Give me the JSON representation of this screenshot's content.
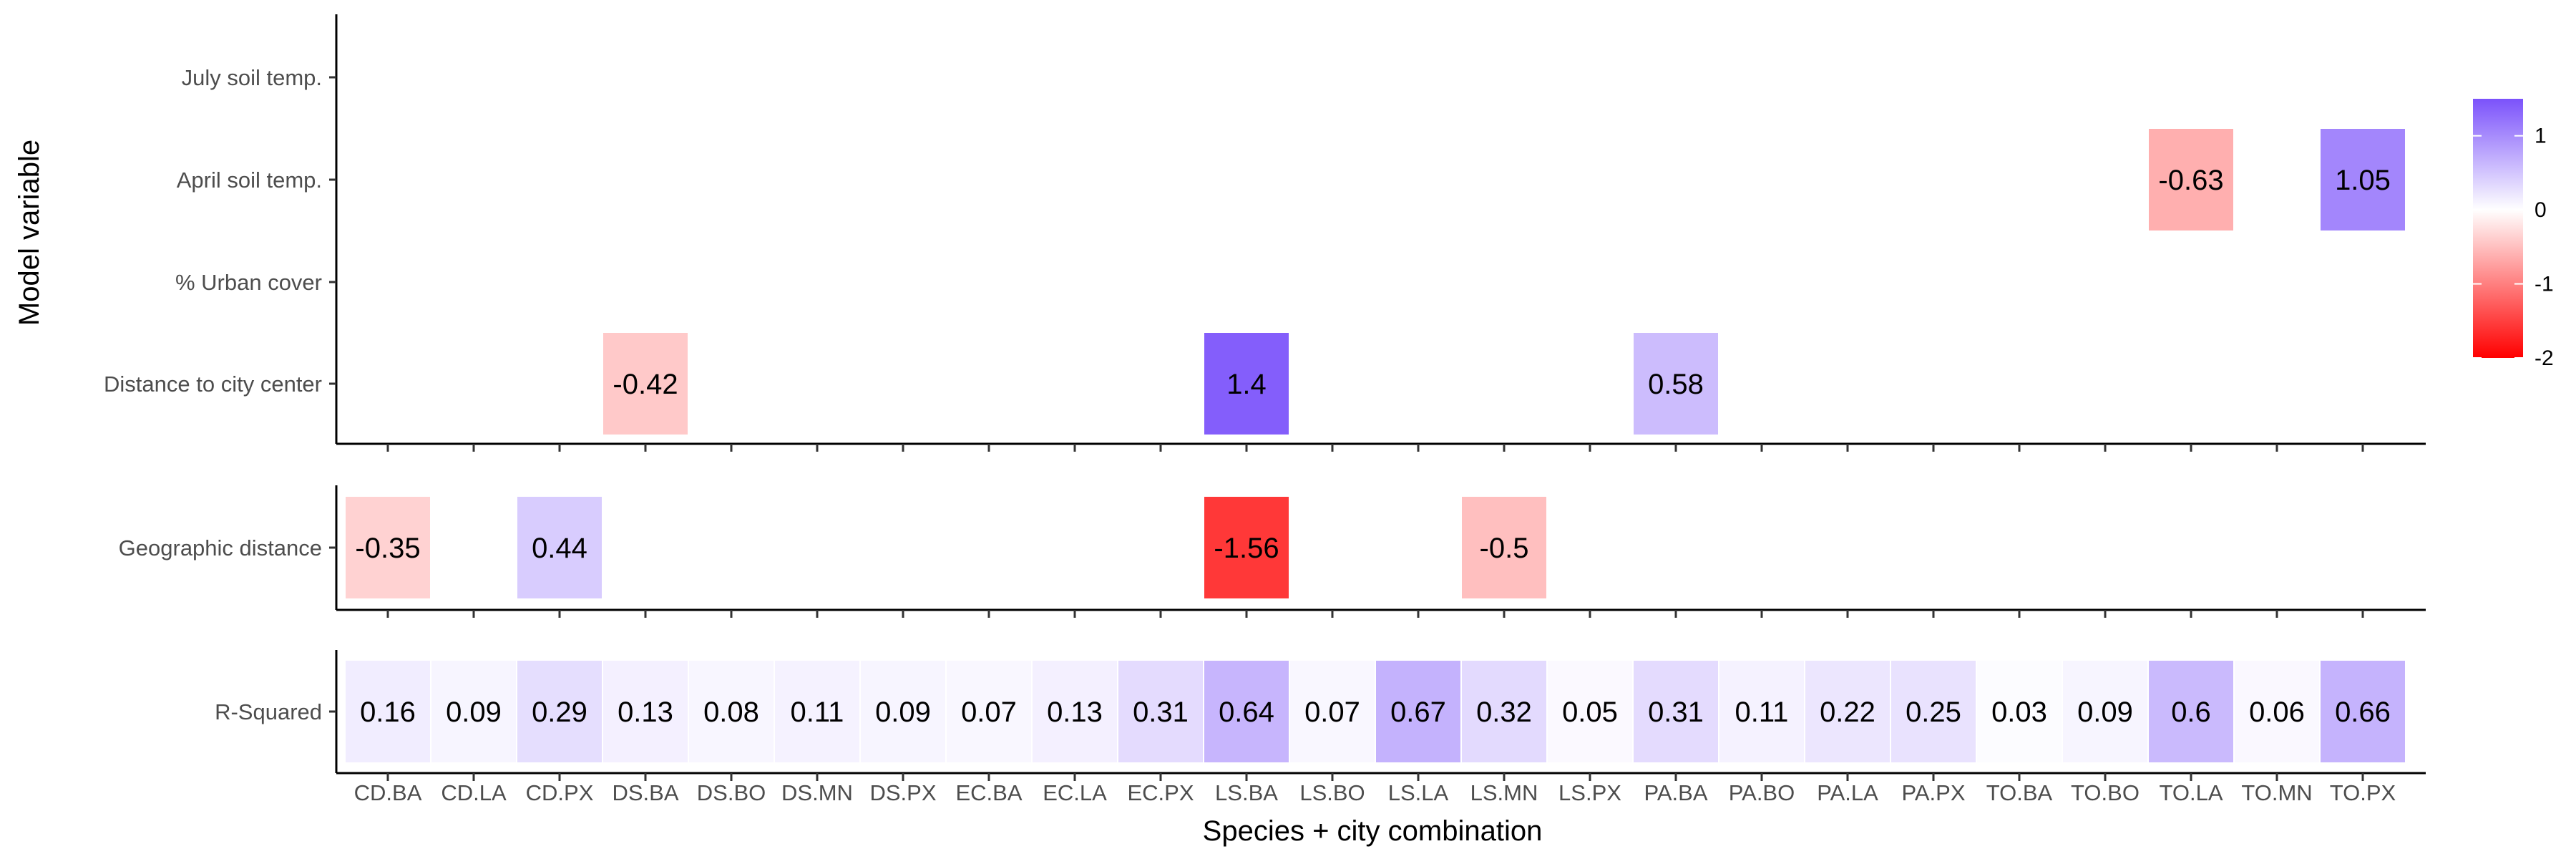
{
  "chart_data": {
    "type": "heatmap",
    "xlabel": "Species + city combination",
    "ylabel": "Model variable",
    "x_categories": [
      "CD.BA",
      "CD.LA",
      "CD.PX",
      "DS.BA",
      "DS.BO",
      "DS.MN",
      "DS.PX",
      "EC.BA",
      "EC.LA",
      "EC.PX",
      "LS.BA",
      "LS.BO",
      "LS.LA",
      "LS.MN",
      "LS.PX",
      "PA.BA",
      "PA.BO",
      "PA.LA",
      "PA.PX",
      "TO.BA",
      "TO.BO",
      "TO.LA",
      "TO.MN",
      "TO.PX"
    ],
    "panels": [
      {
        "rows": [
          "July soil temp.",
          "April soil temp.",
          "% Urban cover",
          "Distance to city center"
        ],
        "cells": [
          {
            "x": "TO.LA",
            "y": "April soil temp.",
            "value": -0.63,
            "label": "-0.63"
          },
          {
            "x": "TO.PX",
            "y": "April soil temp.",
            "value": 1.05,
            "label": "1.05"
          },
          {
            "x": "DS.BA",
            "y": "Distance to city center",
            "value": -0.42,
            "label": "-0.42"
          },
          {
            "x": "LS.BA",
            "y": "Distance to city center",
            "value": 1.4,
            "label": "1.4"
          },
          {
            "x": "PA.BA",
            "y": "Distance to city center",
            "value": 0.58,
            "label": "0.58"
          }
        ]
      },
      {
        "rows": [
          "Geographic distance"
        ],
        "cells": [
          {
            "x": "CD.BA",
            "y": "Geographic distance",
            "value": -0.35,
            "label": "-0.35"
          },
          {
            "x": "CD.PX",
            "y": "Geographic distance",
            "value": 0.44,
            "label": "0.44"
          },
          {
            "x": "LS.BA",
            "y": "Geographic distance",
            "value": -1.56,
            "label": "-1.56"
          },
          {
            "x": "LS.MN",
            "y": "Geographic distance",
            "value": -0.5,
            "label": "-0.5"
          }
        ]
      },
      {
        "rows": [
          "R-Squared"
        ],
        "cells": [
          {
            "x": "CD.BA",
            "y": "R-Squared",
            "value": 0.16,
            "label": "0.16"
          },
          {
            "x": "CD.LA",
            "y": "R-Squared",
            "value": 0.09,
            "label": "0.09"
          },
          {
            "x": "CD.PX",
            "y": "R-Squared",
            "value": 0.29,
            "label": "0.29"
          },
          {
            "x": "DS.BA",
            "y": "R-Squared",
            "value": 0.13,
            "label": "0.13"
          },
          {
            "x": "DS.BO",
            "y": "R-Squared",
            "value": 0.08,
            "label": "0.08"
          },
          {
            "x": "DS.MN",
            "y": "R-Squared",
            "value": 0.11,
            "label": "0.11"
          },
          {
            "x": "DS.PX",
            "y": "R-Squared",
            "value": 0.09,
            "label": "0.09"
          },
          {
            "x": "EC.BA",
            "y": "R-Squared",
            "value": 0.07,
            "label": "0.07"
          },
          {
            "x": "EC.LA",
            "y": "R-Squared",
            "value": 0.13,
            "label": "0.13"
          },
          {
            "x": "EC.PX",
            "y": "R-Squared",
            "value": 0.31,
            "label": "0.31"
          },
          {
            "x": "LS.BA",
            "y": "R-Squared",
            "value": 0.64,
            "label": "0.64"
          },
          {
            "x": "LS.BO",
            "y": "R-Squared",
            "value": 0.07,
            "label": "0.07"
          },
          {
            "x": "LS.LA",
            "y": "R-Squared",
            "value": 0.67,
            "label": "0.67"
          },
          {
            "x": "LS.MN",
            "y": "R-Squared",
            "value": 0.32,
            "label": "0.32"
          },
          {
            "x": "LS.PX",
            "y": "R-Squared",
            "value": 0.05,
            "label": "0.05"
          },
          {
            "x": "PA.BA",
            "y": "R-Squared",
            "value": 0.31,
            "label": "0.31"
          },
          {
            "x": "PA.BO",
            "y": "R-Squared",
            "value": 0.11,
            "label": "0.11"
          },
          {
            "x": "PA.LA",
            "y": "R-Squared",
            "value": 0.22,
            "label": "0.22"
          },
          {
            "x": "PA.PX",
            "y": "R-Squared",
            "value": 0.25,
            "label": "0.25"
          },
          {
            "x": "TO.BA",
            "y": "R-Squared",
            "value": 0.03,
            "label": "0.03"
          },
          {
            "x": "TO.BO",
            "y": "R-Squared",
            "value": 0.09,
            "label": "0.09"
          },
          {
            "x": "TO.LA",
            "y": "R-Squared",
            "value": 0.6,
            "label": "0.6"
          },
          {
            "x": "TO.MN",
            "y": "R-Squared",
            "value": 0.06,
            "label": "0.06"
          },
          {
            "x": "TO.PX",
            "y": "R-Squared",
            "value": 0.66,
            "label": "0.66"
          }
        ]
      }
    ],
    "legend": {
      "position": "right",
      "range": [
        -2,
        1.5
      ],
      "ticks": [
        1,
        0,
        -1,
        -2
      ],
      "tick_labels": [
        "1",
        "0",
        "-1",
        "-2"
      ],
      "colors": {
        "low": "#ff0000",
        "mid": "#ffffff",
        "high": "#7b52fb"
      }
    },
    "grid": false
  }
}
